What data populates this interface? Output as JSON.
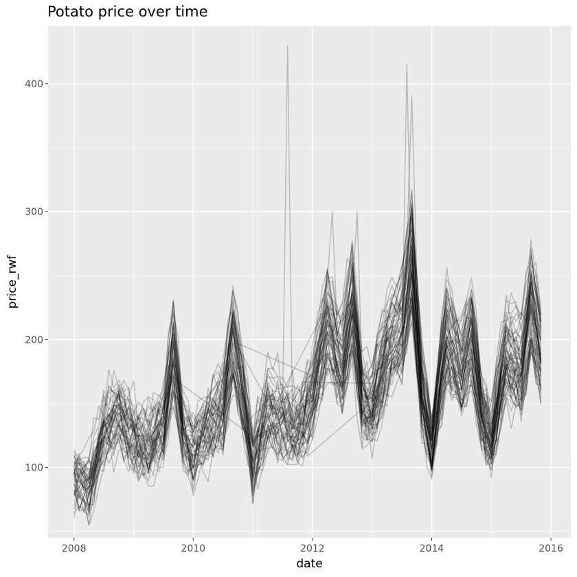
{
  "chart_data": {
    "type": "line",
    "title": "Potato price over time",
    "xlabel": "date",
    "ylabel": "price_rwf",
    "x_type": "date",
    "x_ticks": [
      "2008",
      "2010",
      "2012",
      "2014",
      "2016"
    ],
    "y_ticks": [
      100,
      200,
      300,
      400
    ],
    "xlim": [
      "2007-07-25",
      "2016-05-01"
    ],
    "ylim": [
      45,
      445
    ],
    "grid": true,
    "background": "#ebebeb",
    "line_color": "rgba(0,0,0,0.22)",
    "series_count": 60,
    "series_note": "about 60 overlapping market series plotted in translucent black; no legend",
    "mean_profile": {
      "x": [
        "2008-01",
        "2008-04",
        "2008-07",
        "2008-10",
        "2009-01",
        "2009-04",
        "2009-07",
        "2009-09",
        "2009-11",
        "2010-01",
        "2010-04",
        "2010-07",
        "2010-09",
        "2010-11",
        "2011-01",
        "2011-04",
        "2011-07",
        "2011-10",
        "2012-01",
        "2012-04",
        "2012-07",
        "2012-09",
        "2012-11",
        "2013-01",
        "2013-04",
        "2013-07",
        "2013-09",
        "2013-11",
        "2014-01",
        "2014-04",
        "2014-07",
        "2014-09",
        "2014-11",
        "2015-01",
        "2015-04",
        "2015-07",
        "2015-09",
        "2015-11"
      ],
      "y": [
        95,
        88,
        130,
        145,
        125,
        120,
        135,
        195,
        130,
        115,
        135,
        150,
        205,
        160,
        105,
        150,
        140,
        130,
        160,
        220,
        185,
        235,
        160,
        150,
        200,
        215,
        270,
        165,
        120,
        210,
        180,
        210,
        150,
        125,
        195,
        180,
        235,
        195
      ]
    },
    "spikes": [
      {
        "x": "2011-08",
        "y": 430
      },
      {
        "x": "2013-08",
        "y": 415
      },
      {
        "x": "2013-09",
        "y": 390
      },
      {
        "x": "2012-05",
        "y": 300
      },
      {
        "x": "2012-10",
        "y": 300
      },
      {
        "x": "2010-12",
        "y": 220
      }
    ]
  }
}
